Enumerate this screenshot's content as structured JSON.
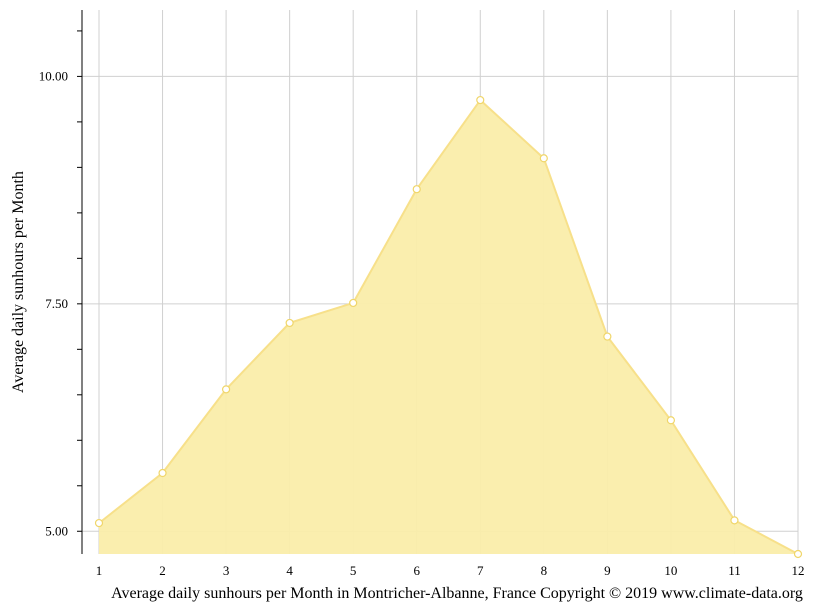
{
  "chart_data": {
    "type": "area",
    "title": "",
    "caption": "Average daily sunhours per Month in Montricher-Albanne, France Copyright © 2019 www.climate-data.org",
    "xlabel": "",
    "ylabel": "Average daily sunhours per Month",
    "x": [
      1,
      2,
      3,
      4,
      5,
      6,
      7,
      8,
      9,
      10,
      11,
      12
    ],
    "x_tick_labels": [
      "1",
      "2",
      "3",
      "4",
      "5",
      "6",
      "7",
      "8",
      "9",
      "10",
      "11",
      "12"
    ],
    "xlim": [
      1,
      12
    ],
    "ylim": [
      4.75,
      10.73
    ],
    "y_ticks_major": [
      5.0,
      7.5,
      10.0
    ],
    "y_tick_labels": [
      "5.00",
      "7.50",
      "10.00"
    ],
    "y_ticks_minor": [
      5.5,
      6.0,
      6.5,
      7.0,
      8.0,
      8.5,
      9.0,
      9.5,
      10.5
    ],
    "series": [
      {
        "name": "",
        "values": [
          5.09,
          5.64,
          6.56,
          7.29,
          7.51,
          8.76,
          9.74,
          9.1,
          7.14,
          6.22,
          5.12,
          4.75
        ]
      }
    ],
    "grid": true,
    "legend": "none",
    "colors": {
      "fill": "#faedaa",
      "line": "#f7e08a",
      "marker_stroke": "#f0d66a",
      "grid": "#d0d0d0",
      "axis": "#000000"
    }
  }
}
